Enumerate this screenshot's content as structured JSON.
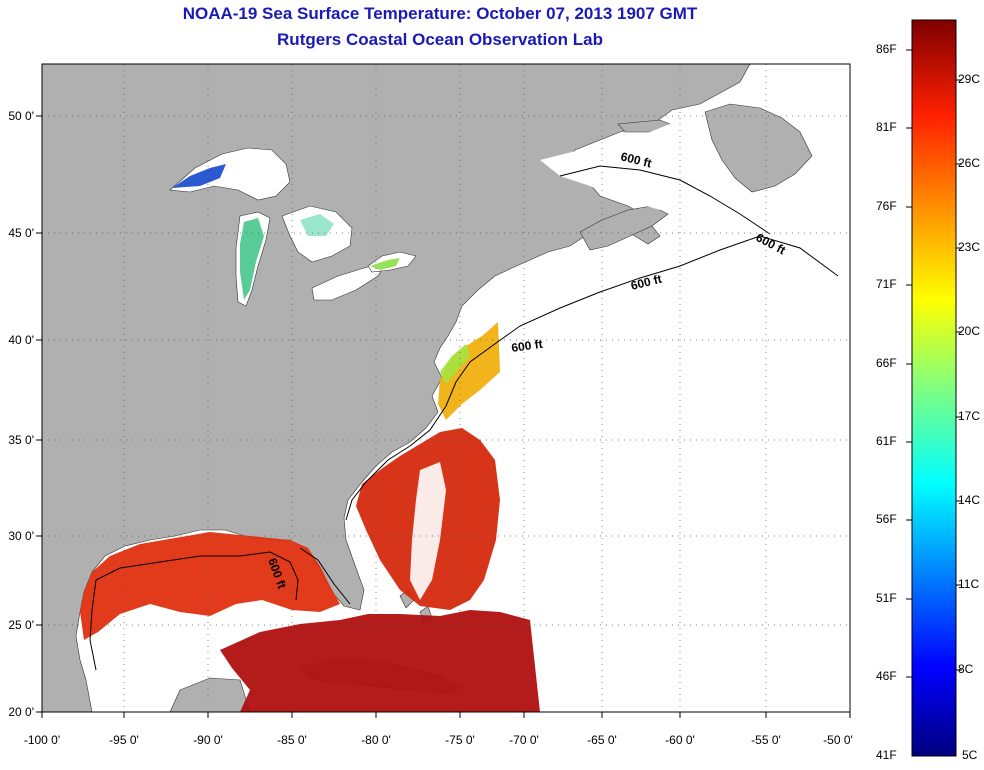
{
  "title": "NOAA-19 Sea Surface Temperature:  October 07, 2013 1907 GMT",
  "subtitle": "Rutgers Coastal Ocean Observation Lab",
  "map": {
    "lon_ticks": [
      "-100 0'",
      "-95 0'",
      "-90 0'",
      "-85 0'",
      "-80 0'",
      "-75 0'",
      "-70 0'",
      "-65 0'",
      "-60 0'",
      "-55 0'",
      "-50 0'"
    ],
    "lat_ticks": [
      "20 0'",
      "25 0'",
      "30 0'",
      "35 0'",
      "40 0'",
      "45 0'",
      "50 0'"
    ],
    "contour_labels": [
      "600 ft",
      "600 ft",
      "600 ft",
      "600 ft",
      "600 ft"
    ],
    "colors": {
      "land": "#b0b0b0",
      "ocean_no_data": "#ffffff",
      "contour": "#000000"
    }
  },
  "colorbar": {
    "fahrenheit": [
      "86F",
      "81F",
      "76F",
      "71F",
      "66F",
      "61F",
      "56F",
      "51F",
      "46F",
      "41F"
    ],
    "celsius": [
      "29C",
      "26C",
      "23C",
      "20C",
      "17C",
      "14C",
      "11C",
      "8C",
      "5C"
    ]
  }
}
